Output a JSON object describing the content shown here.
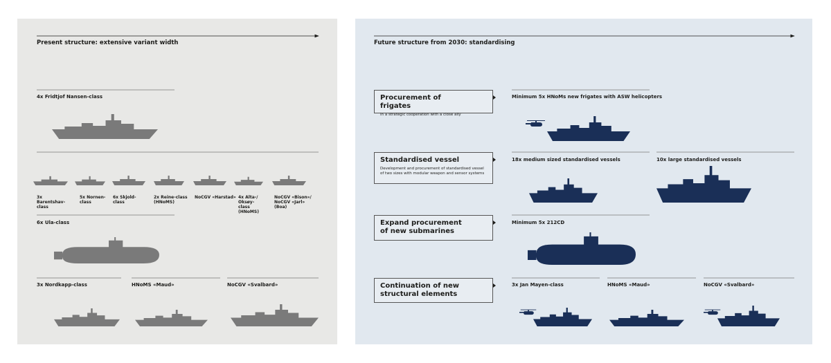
{
  "present": {
    "title": "Present structure: extensive variant width",
    "labels": [
      "4x Fridtjof Nansen-class",
      "3x Barentshav-class",
      "5x Nornen-class",
      "6x Skjold-class",
      "2x Reine-class (HNoMS)",
      "NoCGV «Harstad»",
      "4x Alta-/ Oksøy-class (HNoMS)",
      "NoCGV «Bison»/ NoCGV «Jarl» (Boa)",
      "6x Ula-class",
      "3x Nordkapp-class",
      "HNoMS «Maud»",
      "NoCGV «Svalbard»"
    ]
  },
  "future": {
    "title": "Future structure from 2030: standardising",
    "boxes": [
      {
        "title": "Procurement of frigates",
        "text": "In a strategic cooperation with a close ally"
      },
      {
        "title": "Standardised vessel",
        "text": "Development and procurement of standardised vessel of two sizes with modular weapon and sensor systems"
      },
      {
        "title": "Expand procurement of new submarines"
      },
      {
        "title": "Continuation of new structural elements"
      }
    ],
    "labels": [
      "Minimum 5x HNoMs new frigates with ASW helicopters",
      "18x medium sized standardised vessels",
      "10x large standardised vessels",
      "Minimum 5x 212CD",
      "3x Jan Mayen-class",
      "HNoMS «Maud»",
      "NoCGV «Svalbard»"
    ]
  }
}
